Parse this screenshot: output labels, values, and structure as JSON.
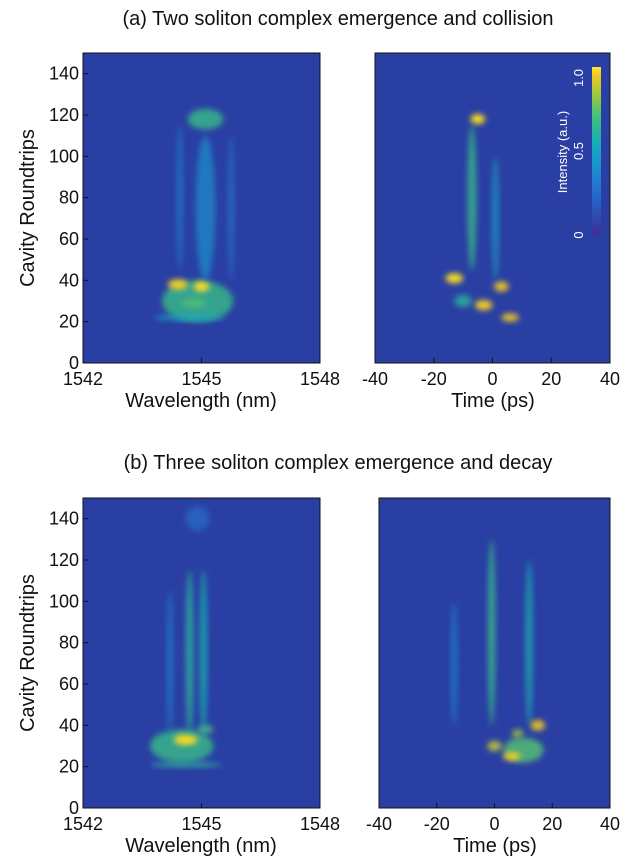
{
  "colors": {
    "background": "#2a3fa3",
    "colormap": [
      "#3b2f94",
      "#2860c8",
      "#1c8fd0",
      "#16aeb8",
      "#3fc07f",
      "#a8c93a",
      "#f4c623",
      "#fde725"
    ]
  },
  "chart_data": [
    {
      "type": "heatmap",
      "panel": "a",
      "title": "(a)  Two soliton complex emergence and collision",
      "subplots": [
        {
          "xlabel": "Wavelength (nm)",
          "ylabel": "Cavity Roundtrips",
          "xlim": [
            1542,
            1548
          ],
          "ylim": [
            0,
            150
          ],
          "xticks": [
            1542,
            1545,
            1548
          ],
          "yticks": [
            0,
            20,
            40,
            60,
            80,
            100,
            120,
            140
          ],
          "features": [
            {
              "x": 1544.9,
              "y": 30,
              "sx": 0.9,
              "sy": 10,
              "a": 0.55
            },
            {
              "x": 1544.4,
              "y": 38,
              "sx": 0.25,
              "sy": 2.5,
              "a": 0.9
            },
            {
              "x": 1545.0,
              "y": 37,
              "sx": 0.2,
              "sy": 2.5,
              "a": 0.95
            },
            {
              "x": 1544.8,
              "y": 29,
              "sx": 0.3,
              "sy": 2,
              "a": 0.6
            },
            {
              "x": 1545.1,
              "y": 118,
              "sx": 0.45,
              "sy": 5,
              "a": 0.55
            },
            {
              "x": 1545.1,
              "y": 75,
              "sx": 0.25,
              "sy": 35,
              "a": 0.3
            },
            {
              "x": 1544.45,
              "y": 80,
              "sx": 0.08,
              "sy": 35,
              "a": 0.25
            },
            {
              "x": 1545.75,
              "y": 75,
              "sx": 0.08,
              "sy": 35,
              "a": 0.22
            },
            {
              "x": 1544.7,
              "y": 22,
              "sx": 0.9,
              "sy": 1.5,
              "a": 0.4
            }
          ]
        },
        {
          "xlabel": "Time (ps)",
          "ylabel": "",
          "xlim": [
            -40,
            40
          ],
          "ylim": [
            0,
            150
          ],
          "xticks": [
            -40,
            -20,
            0,
            20,
            40
          ],
          "yticks": [],
          "features": [
            {
              "x": -5,
              "y": 118,
              "sx": 2.5,
              "sy": 2.5,
              "a": 0.95
            },
            {
              "x": -7,
              "y": 80,
              "sx": 1.5,
              "sy": 35,
              "a": 0.55
            },
            {
              "x": 1,
              "y": 70,
              "sx": 1.2,
              "sy": 30,
              "a": 0.35
            },
            {
              "x": -13,
              "y": 41,
              "sx": 3,
              "sy": 2.5,
              "a": 0.95
            },
            {
              "x": 3,
              "y": 37,
              "sx": 2.5,
              "sy": 2.5,
              "a": 0.85
            },
            {
              "x": -3,
              "y": 28,
              "sx": 3,
              "sy": 2.5,
              "a": 0.9
            },
            {
              "x": 6,
              "y": 22,
              "sx": 3,
              "sy": 2,
              "a": 0.85
            },
            {
              "x": -10,
              "y": 30,
              "sx": 3,
              "sy": 3,
              "a": 0.5
            }
          ],
          "colorbar": {
            "label": "Intensity (a.u.)",
            "ticks": [
              "0",
              "0.5",
              "1.0"
            ],
            "range": [
              0,
              1
            ]
          }
        }
      ]
    },
    {
      "type": "heatmap",
      "panel": "b",
      "title": "(b)  Three soliton complex emergence and decay",
      "subplots": [
        {
          "xlabel": "Wavelength (nm)",
          "ylabel": "Cavity Roundtrips",
          "xlim": [
            1542,
            1548
          ],
          "ylim": [
            0,
            150
          ],
          "xticks": [
            1542,
            1545,
            1548
          ],
          "yticks": [
            0,
            20,
            40,
            60,
            80,
            100,
            120,
            140
          ],
          "features": [
            {
              "x": 1544.5,
              "y": 30,
              "sx": 0.8,
              "sy": 8,
              "a": 0.55
            },
            {
              "x": 1544.6,
              "y": 33,
              "sx": 0.3,
              "sy": 2.5,
              "a": 0.95
            },
            {
              "x": 1545.1,
              "y": 38,
              "sx": 0.2,
              "sy": 2,
              "a": 0.6
            },
            {
              "x": 1544.7,
              "y": 75,
              "sx": 0.1,
              "sy": 40,
              "a": 0.5
            },
            {
              "x": 1545.05,
              "y": 75,
              "sx": 0.1,
              "sy": 40,
              "a": 0.45
            },
            {
              "x": 1544.2,
              "y": 70,
              "sx": 0.08,
              "sy": 35,
              "a": 0.25
            },
            {
              "x": 1544.9,
              "y": 140,
              "sx": 0.3,
              "sy": 6,
              "a": 0.2
            },
            {
              "x": 1544.6,
              "y": 21,
              "sx": 0.9,
              "sy": 1.3,
              "a": 0.5
            }
          ]
        },
        {
          "xlabel": "Time (ps)",
          "ylabel": "",
          "xlim": [
            -40,
            40
          ],
          "ylim": [
            0,
            150
          ],
          "xticks": [
            -40,
            -20,
            0,
            20,
            40
          ],
          "yticks": [],
          "features": [
            {
              "x": -1,
              "y": 85,
              "sx": 1.3,
              "sy": 45,
              "a": 0.55
            },
            {
              "x": 12,
              "y": 80,
              "sx": 1.3,
              "sy": 40,
              "a": 0.45
            },
            {
              "x": -14,
              "y": 70,
              "sx": 1.2,
              "sy": 30,
              "a": 0.25
            },
            {
              "x": 10,
              "y": 28,
              "sx": 7,
              "sy": 6,
              "a": 0.6
            },
            {
              "x": 15,
              "y": 40,
              "sx": 2.5,
              "sy": 2.5,
              "a": 0.85
            },
            {
              "x": 6,
              "y": 25,
              "sx": 3,
              "sy": 2,
              "a": 0.9
            },
            {
              "x": 0,
              "y": 30,
              "sx": 2.5,
              "sy": 2.5,
              "a": 0.75
            },
            {
              "x": 8,
              "y": 36,
              "sx": 2,
              "sy": 2,
              "a": 0.7
            }
          ]
        }
      ]
    }
  ]
}
